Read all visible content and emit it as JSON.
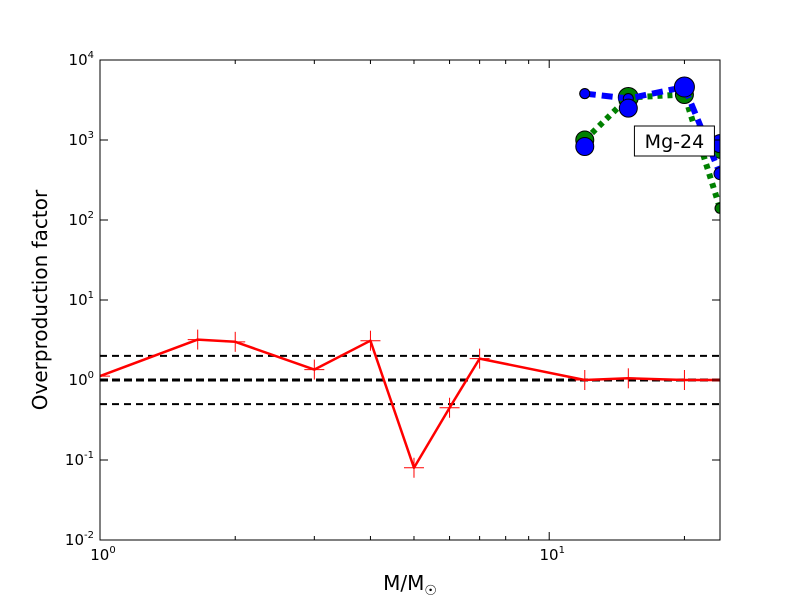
{
  "chart_data": {
    "type": "line",
    "x_scale": "log",
    "y_scale": "log",
    "xlim": [
      1,
      24
    ],
    "ylim": [
      0.01,
      10000
    ],
    "xlabel": "M/M",
    "xlabel_symbol": "☉",
    "ylabel": "Overproduction factor",
    "grid": false,
    "x_ticks": [
      {
        "value": 1,
        "base": "10",
        "exp": "0"
      },
      {
        "value": 10,
        "base": "10",
        "exp": "1"
      }
    ],
    "y_ticks": [
      {
        "value": 0.01,
        "base": "10",
        "exp": "-2"
      },
      {
        "value": 0.1,
        "base": "10",
        "exp": "-1"
      },
      {
        "value": 1,
        "base": "10",
        "exp": "0"
      },
      {
        "value": 10,
        "base": "10",
        "exp": "1"
      },
      {
        "value": 100,
        "base": "10",
        "exp": "2"
      },
      {
        "value": 1000,
        "base": "10",
        "exp": "3"
      },
      {
        "value": 10000,
        "base": "10",
        "exp": "4"
      }
    ],
    "reference_lines": [
      {
        "y": 2.0,
        "color": "#000000",
        "style": "dashed",
        "weight": "normal"
      },
      {
        "y": 1.0,
        "color": "#000000",
        "style": "dashed",
        "weight": "bold"
      },
      {
        "y": 0.5,
        "color": "#000000",
        "style": "dashed",
        "weight": "normal"
      }
    ],
    "series": [
      {
        "id": "red-line",
        "color": "#ff0000",
        "style": "solid",
        "marker": "plus",
        "x": [
          1.0,
          1.65,
          2.0,
          3.0,
          4.0,
          5.0,
          6.0,
          7.0,
          12.0,
          15.0,
          20.0,
          24.0
        ],
        "y": [
          1.12,
          3.2,
          3.0,
          1.35,
          3.1,
          0.08,
          0.45,
          1.85,
          1.0,
          1.05,
          1.0,
          1.0
        ]
      },
      {
        "id": "green-dotted",
        "color": "#008000",
        "style": "dotted",
        "marker": "circle",
        "x": [
          12.0,
          15.0,
          20.0,
          24.0
        ],
        "y": [
          1000,
          3400,
          3700,
          140
        ],
        "marker_sizes": [
          9,
          10,
          9,
          5
        ],
        "extra_points": [
          {
            "x": 12.0,
            "y": 3800,
            "size": 5
          },
          {
            "x": 24.0,
            "y": 700,
            "size": 6
          }
        ]
      },
      {
        "id": "blue-dashed",
        "color": "#0000ff",
        "style": "dashed",
        "marker": "circle",
        "x": [
          12.0,
          15.0,
          20.0,
          24.0
        ],
        "y": [
          3800,
          3300,
          4600,
          380
        ],
        "marker_sizes": [
          5,
          5,
          10,
          6
        ],
        "extra_points": [
          {
            "x": 12.0,
            "y": 830,
            "size": 9
          },
          {
            "x": 15.0,
            "y": 2500,
            "size": 9
          },
          {
            "x": 24.0,
            "y": 900,
            "size": 9
          }
        ]
      }
    ],
    "annotation": {
      "text": "Mg-24",
      "x": 19.0,
      "y": 1000
    }
  }
}
